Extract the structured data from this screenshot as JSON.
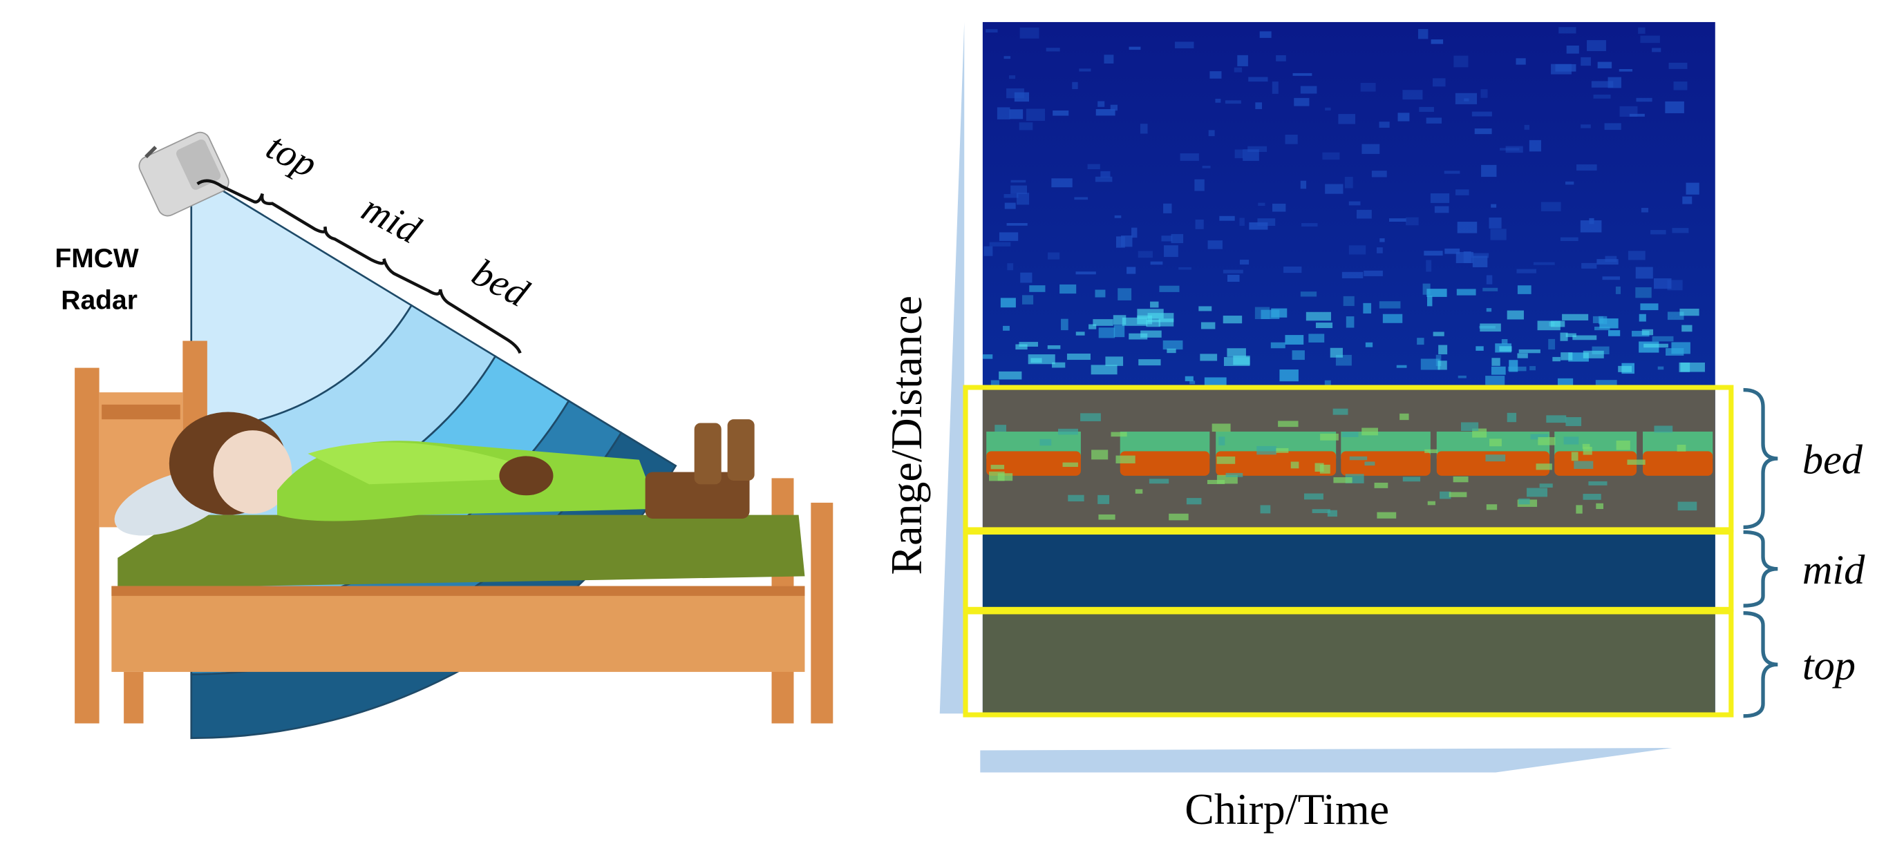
{
  "radar_label": [
    "FMCW",
    "Radar"
  ],
  "beam_labels": [
    "top",
    "mid",
    "bed"
  ],
  "y_axis_label": "Range/Distance",
  "x_axis_label": "Chirp/Time",
  "region_labels": [
    "bed",
    "mid",
    "top"
  ]
}
